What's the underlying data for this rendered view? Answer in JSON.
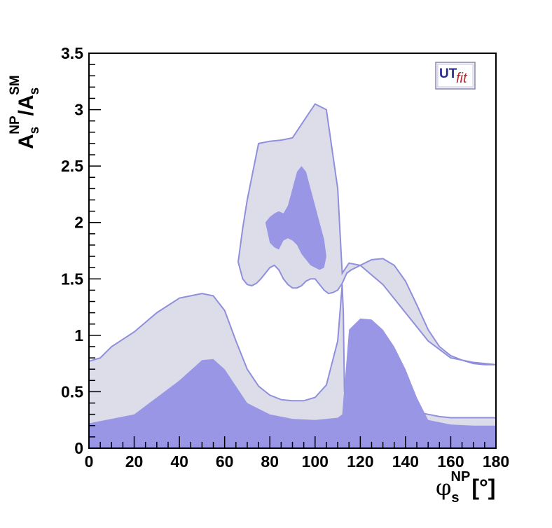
{
  "chart_data": {
    "type": "contour",
    "title": "",
    "xlabel": {
      "main": "φ",
      "sub": "s",
      "sup": "NP",
      "unit": "[°]"
    },
    "ylabel": {
      "main": "A",
      "sub": "s",
      "sup": "NP",
      "sep": "/",
      "main2": "A",
      "sub2": "s",
      "sup2": "SM"
    },
    "xlim": [
      0,
      180
    ],
    "ylim": [
      0,
      3.5
    ],
    "xticks": [
      0,
      20,
      40,
      60,
      80,
      100,
      120,
      140,
      160,
      180
    ],
    "yticks": [
      0,
      0.5,
      1,
      1.5,
      2,
      2.5,
      3,
      3.5
    ],
    "ytick_labels": [
      "0",
      "0.5",
      "1",
      "1.5",
      "2",
      "2.5",
      "3",
      "3.5"
    ],
    "grid": false,
    "legend": "none",
    "colors": {
      "outer_region": "#dcdde9",
      "outer_edge": "#8f8fdc",
      "inner_region": "#9a96e6",
      "frame": "#000000"
    },
    "logo": {
      "prefix": "UT",
      "suffix": "fit",
      "placement": "top-right"
    },
    "series": [
      {
        "region": "outer-upper-boundary",
        "x": [
          0,
          5,
          10,
          20,
          30,
          40,
          50,
          55,
          60,
          65,
          70,
          75,
          80,
          85,
          90,
          95,
          100,
          105,
          110,
          112,
          112.5,
          113,
          115,
          120,
          125,
          130,
          135,
          140,
          145,
          150,
          155,
          160,
          165,
          170,
          175,
          180
        ],
        "y": [
          0.77,
          0.8,
          0.9,
          1.03,
          1.2,
          1.33,
          1.37,
          1.35,
          1.22,
          0.95,
          0.7,
          0.55,
          0.47,
          0.43,
          0.42,
          0.42,
          0.45,
          0.56,
          0.95,
          1.45,
          1.2,
          0.5,
          0.3,
          0.28,
          0.3,
          0.32,
          0.33,
          0.33,
          0.32,
          0.3,
          0.28,
          0.27,
          0.27,
          0.27,
          0.27,
          0.27
        ]
      },
      {
        "region": "outer-mid-island",
        "x": [
          66,
          68,
          70,
          72,
          74,
          76,
          78,
          80,
          82,
          84,
          86,
          88,
          90,
          92,
          94,
          96,
          98,
          100,
          102,
          104,
          106,
          108,
          110,
          112,
          114,
          116,
          118,
          120,
          125,
          130,
          135,
          140,
          145,
          150,
          155,
          160,
          165,
          170,
          175,
          180,
          180,
          170,
          160,
          150,
          140,
          130,
          120,
          115,
          112,
          110,
          105,
          100,
          95,
          90,
          85,
          80,
          75,
          70,
          68,
          66
        ],
        "y": [
          1.65,
          1.5,
          1.45,
          1.44,
          1.46,
          1.5,
          1.55,
          1.6,
          1.62,
          1.58,
          1.5,
          1.45,
          1.42,
          1.42,
          1.44,
          1.48,
          1.5,
          1.5,
          1.45,
          1.4,
          1.37,
          1.38,
          1.4,
          1.46,
          1.55,
          1.58,
          1.6,
          1.62,
          1.67,
          1.68,
          1.62,
          1.48,
          1.27,
          1.05,
          0.9,
          0.82,
          0.78,
          0.75,
          0.74,
          0.74,
          0.74,
          0.76,
          0.8,
          0.95,
          1.2,
          1.45,
          1.62,
          1.64,
          1.55,
          2.3,
          3.0,
          3.05,
          2.9,
          2.75,
          2.73,
          2.72,
          2.7,
          2.2,
          1.95,
          1.65
        ]
      },
      {
        "region": "inner-lower",
        "x": [
          0,
          20,
          40,
          50,
          55,
          60,
          70,
          80,
          90,
          100,
          110,
          112,
          115,
          120,
          125,
          130,
          135,
          140,
          145,
          150,
          160,
          170,
          180
        ],
        "y": [
          0.22,
          0.3,
          0.6,
          0.78,
          0.79,
          0.7,
          0.4,
          0.3,
          0.26,
          0.25,
          0.27,
          0.3,
          1.05,
          1.15,
          1.14,
          1.05,
          0.9,
          0.7,
          0.45,
          0.25,
          0.21,
          0.2,
          0.2
        ]
      },
      {
        "region": "inner-upper-island",
        "x": [
          78,
          80,
          82,
          84,
          86,
          88,
          90,
          92,
          94,
          96,
          98,
          100,
          102,
          104,
          105,
          104,
          102,
          100,
          98,
          96,
          94,
          92,
          90,
          88,
          86,
          84,
          82,
          80,
          78
        ],
        "y": [
          2.0,
          2.05,
          2.08,
          2.1,
          2.08,
          2.15,
          2.3,
          2.45,
          2.5,
          2.45,
          2.3,
          2.15,
          2.0,
          1.85,
          1.7,
          1.6,
          1.58,
          1.6,
          1.62,
          1.67,
          1.72,
          1.8,
          1.84,
          1.86,
          1.84,
          1.76,
          1.78,
          1.82,
          2.0
        ]
      }
    ]
  }
}
